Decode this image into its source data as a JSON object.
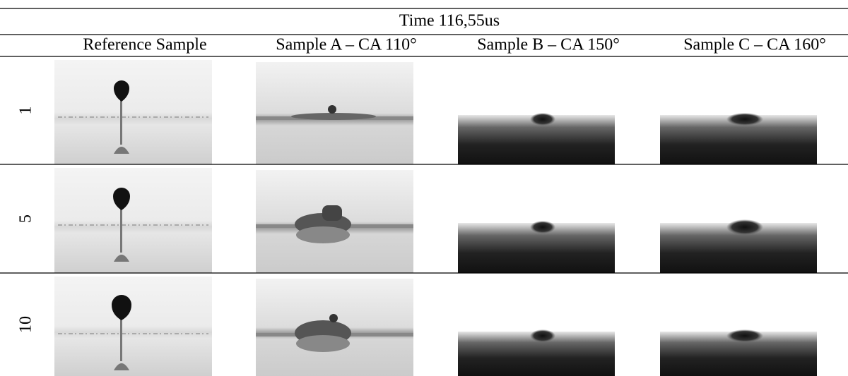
{
  "header": {
    "title": "Time 116,55us"
  },
  "table": {
    "columns": [
      "Reference Sample",
      "Sample A – CA 110°",
      "Sample B – CA 150°",
      "Sample C – CA 160°"
    ],
    "rows": [
      "1",
      "5",
      "10"
    ]
  }
}
